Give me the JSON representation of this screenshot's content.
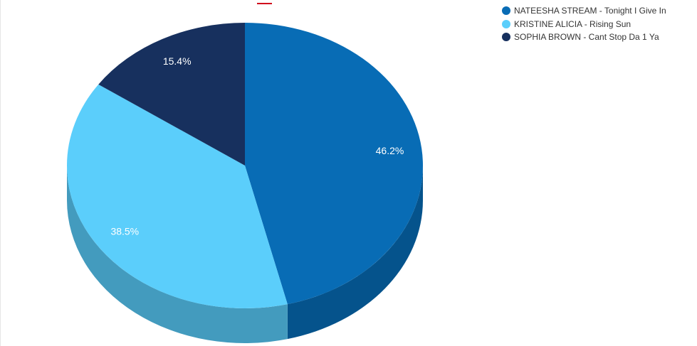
{
  "accent_color": "#d0021b",
  "chart_data": {
    "type": "pie",
    "style": "3d",
    "title": "",
    "start": "top, clockwise",
    "legend_position": "top-right",
    "slices": [
      {
        "label": "NATEESHA STREAM - Tonight I Give In",
        "value": 46.2,
        "value_label": "46.2%",
        "color": "#086cb5",
        "side_color": "#05538c"
      },
      {
        "label": "KRISTINE ALICIA - Rising Sun",
        "value": 38.5,
        "value_label": "38.5%",
        "color": "#5bcefb",
        "side_color": "#439bbe"
      },
      {
        "label": "SOPHIA BROWN - Cant Stop Da 1 Ya",
        "value": 15.4,
        "value_label": "15.4%",
        "color": "#17305e",
        "side_color": "#10223f"
      }
    ]
  }
}
